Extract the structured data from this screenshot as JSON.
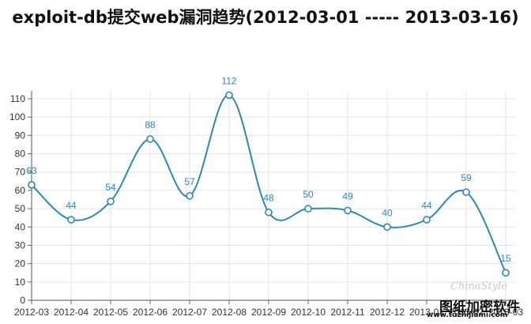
{
  "chart_data": {
    "type": "line",
    "title": "exploit-db提交web漏洞趋势(2012-03-01 ----- 2013-03-16)",
    "categories": [
      "2012-03",
      "2012-04",
      "2012-05",
      "2012-06",
      "2012-07",
      "2012-08",
      "2012-09",
      "2012-10",
      "2012-11",
      "2012-12",
      "2013-01",
      "2013-02",
      "2013-03"
    ],
    "values": [
      63,
      44,
      54,
      88,
      57,
      112,
      48,
      50,
      49,
      40,
      44,
      59,
      15
    ],
    "ylim": [
      0,
      110
    ],
    "yticks": [
      0,
      10,
      20,
      30,
      40,
      50,
      60,
      70,
      80,
      90,
      100,
      110
    ],
    "grid": true,
    "line_color": "#2a8ab4"
  },
  "watermark": {
    "logo": "ChinaStyle",
    "text": "图纸加密软件",
    "url": "www.tuzhijiami.com"
  }
}
